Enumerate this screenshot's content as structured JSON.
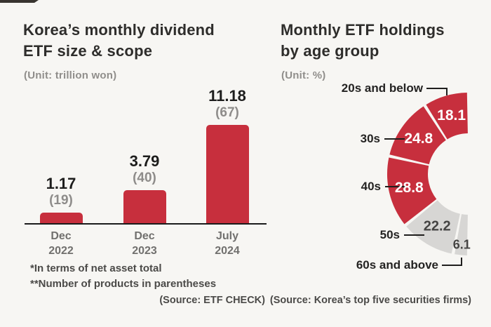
{
  "background": "#f7f6f3",
  "accent_red": "#c72f3d",
  "accent_gray": "#d7d6d4",
  "left_chart": {
    "title_line1": "Korea’s monthly dividend",
    "title_line2": "ETF size & scope",
    "unit": "(Unit: trillion won)",
    "footnote1": "*In terms of net asset total",
    "footnote2": "**Number of products in parentheses",
    "source": "(Source: ETF CHECK)"
  },
  "right_chart": {
    "title_line1": "Monthly ETF holdings",
    "title_line2": "by age group",
    "unit": "(Unit: %)",
    "source": "(Source: Korea’s top five securities firms)"
  },
  "chart_data": [
    {
      "type": "bar",
      "title": "Korea’s monthly dividend ETF size & scope",
      "unit": "trillion won",
      "categories": [
        "Dec 2022",
        "Dec 2023",
        "July 2024"
      ],
      "values": [
        1.17,
        3.79,
        11.18
      ],
      "product_counts": [
        19,
        40,
        67
      ],
      "value_labels": [
        "1.17",
        "3.79",
        "11.18"
      ],
      "count_labels": [
        "(19)",
        "(40)",
        "(67)"
      ],
      "tick_lines": [
        [
          "Dec",
          "2022"
        ],
        [
          "Dec",
          "2023"
        ],
        [
          "July",
          "2024"
        ]
      ],
      "bar_color": "#c72f3d",
      "ylim": [
        0,
        12
      ],
      "grid": false,
      "note": "value labels above bars, product counts in parentheses"
    },
    {
      "type": "pie",
      "title": "Monthly ETF holdings by age group",
      "unit": "%",
      "donut": true,
      "categories": [
        "20s and below",
        "30s",
        "40s",
        "50s",
        "60s and above"
      ],
      "values": [
        18.1,
        24.8,
        28.8,
        22.2,
        6.1
      ],
      "value_labels": [
        "18.1",
        "24.8",
        "28.8",
        "22.2",
        "6.1"
      ],
      "segment_colors": [
        "#c72f3d",
        "#c72f3d",
        "#c72f3d",
        "#d7d6d4",
        "#d7d6d4"
      ],
      "value_text_colors": [
        "#ffffff",
        "#ffffff",
        "#ffffff",
        "#454443",
        "#454443"
      ],
      "layout_hint": "half-donut opening right, 100% = 180deg, starts at 12 o'clock sweeping counterclockwise to 6 o'clock, outside labels with connector lines"
    }
  ]
}
